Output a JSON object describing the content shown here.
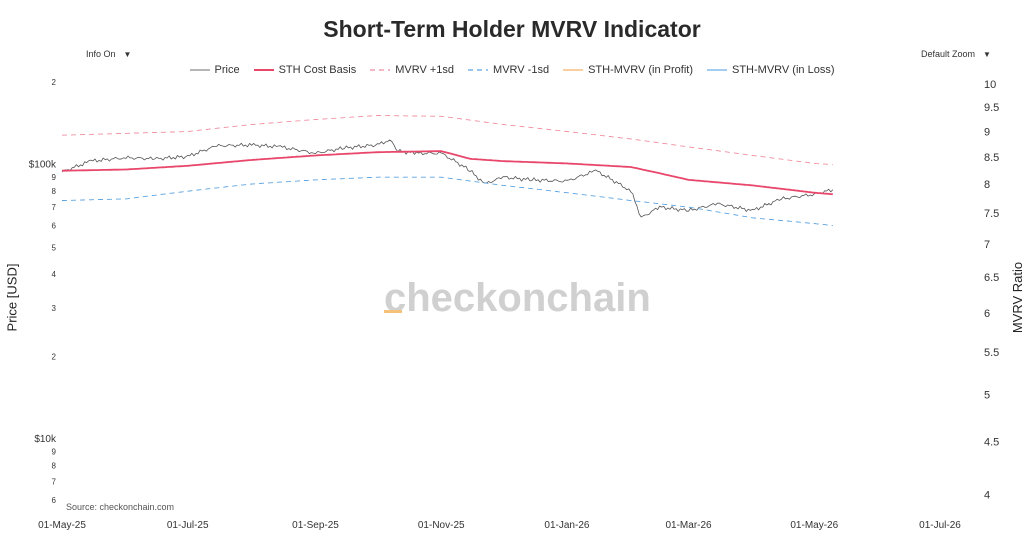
{
  "title": "Short-Term Holder MVRV Indicator",
  "controls": {
    "info_on": "Info On",
    "default_zoom": "Default Zoom",
    "caret": "▼"
  },
  "legend": [
    {
      "label": "Price",
      "color": "#8a8a8a",
      "dash": "none"
    },
    {
      "label": "STH Cost Basis",
      "color": "#e8466a",
      "dash": "none"
    },
    {
      "label": "MVRV +1sd",
      "color": "#f08ea0",
      "dash": "5,4"
    },
    {
      "label": "MVRV -1sd",
      "color": "#5ba3e0",
      "dash": "5,4"
    },
    {
      "label": "STH-MVRV (in Profit)",
      "color": "#f5b266",
      "dash": "none"
    },
    {
      "label": "STH-MVRV (in Loss)",
      "color": "#6aaee6",
      "dash": "none"
    }
  ],
  "source": "Source: checkonchain.com",
  "watermark": "checkonchain",
  "chart_data": {
    "type": "line",
    "x_axis": {
      "ticks": [
        "01-May-25",
        "01-Jul-25",
        "01-Sep-25",
        "01-Nov-25",
        "01-Jan-26",
        "01-Mar-26",
        "01-May-26",
        "01-Jul-26"
      ],
      "range": [
        "2025-05-01",
        "2026-07-01"
      ]
    },
    "y_left": {
      "label": "Price [USD]",
      "scale": "log",
      "range": [
        6000,
        200000
      ],
      "ticks": [
        {
          "v": 6000,
          "t": "6"
        },
        {
          "v": 7000,
          "t": "7"
        },
        {
          "v": 8000,
          "t": "8"
        },
        {
          "v": 9000,
          "t": "9"
        },
        {
          "v": 10000,
          "t": "$10k"
        },
        {
          "v": 20000,
          "t": "2"
        },
        {
          "v": 30000,
          "t": "3"
        },
        {
          "v": 40000,
          "t": "4"
        },
        {
          "v": 50000,
          "t": "5"
        },
        {
          "v": 60000,
          "t": "6"
        },
        {
          "v": 70000,
          "t": "7"
        },
        {
          "v": 80000,
          "t": "8"
        },
        {
          "v": 90000,
          "t": "9"
        },
        {
          "v": 100000,
          "t": "$100k"
        },
        {
          "v": 200000,
          "t": "2"
        }
      ]
    },
    "y_right": {
      "label": "MVRV Ratio",
      "scale": "log",
      "range": [
        3.95,
        10.05
      ],
      "ticks": [
        "4",
        "4.5",
        "5",
        "5.5",
        "6",
        "6.5",
        "7",
        "7.5",
        "8",
        "8.5",
        "9",
        "9.5",
        "10"
      ]
    },
    "series": [
      {
        "name": "Price",
        "axis": "left",
        "color": "#555555",
        "x": [
          "2025-05-01",
          "2025-05-15",
          "2025-06-01",
          "2025-06-15",
          "2025-07-01",
          "2025-07-15",
          "2025-08-01",
          "2025-08-15",
          "2025-09-01",
          "2025-09-15",
          "2025-10-01",
          "2025-10-07",
          "2025-10-11",
          "2025-10-20",
          "2025-11-01",
          "2025-11-15",
          "2025-11-22",
          "2025-12-01",
          "2025-12-15",
          "2026-01-01",
          "2026-01-15",
          "2026-02-01",
          "2026-02-06",
          "2026-02-15",
          "2026-03-01",
          "2026-03-15",
          "2026-04-01",
          "2026-04-15",
          "2026-05-01",
          "2026-05-10"
        ],
        "y": [
          94000,
          103000,
          106000,
          105000,
          107000,
          117000,
          118000,
          116000,
          110000,
          115000,
          118000,
          123000,
          112000,
          110000,
          110000,
          95000,
          85000,
          90000,
          88000,
          87000,
          95000,
          80000,
          64000,
          70000,
          68000,
          72000,
          68000,
          75000,
          78000,
          81000
        ]
      },
      {
        "name": "STH Cost Basis",
        "axis": "left",
        "color": "#e8466a",
        "x": [
          "2025-05-01",
          "2025-06-01",
          "2025-07-01",
          "2025-08-01",
          "2025-09-01",
          "2025-10-01",
          "2025-11-01",
          "2025-11-15",
          "2025-12-01",
          "2026-01-01",
          "2026-02-01",
          "2026-03-01",
          "2026-04-01",
          "2026-05-01",
          "2026-05-10"
        ],
        "y": [
          95000,
          96000,
          99000,
          104000,
          108000,
          111000,
          112000,
          105000,
          103000,
          101000,
          98000,
          88000,
          84000,
          79000,
          78000
        ]
      },
      {
        "name": "MVRV +1sd",
        "axis": "left",
        "color": "#f08ea0",
        "x": [
          "2025-05-01",
          "2025-06-01",
          "2025-07-01",
          "2025-08-01",
          "2025-09-01",
          "2025-10-01",
          "2025-11-01",
          "2025-12-01",
          "2026-01-01",
          "2026-02-01",
          "2026-03-01",
          "2026-04-01",
          "2026-05-01",
          "2026-05-10"
        ],
        "y": [
          128000,
          130000,
          132000,
          140000,
          146000,
          151000,
          150000,
          140000,
          132000,
          124000,
          116000,
          108000,
          101000,
          100000
        ]
      },
      {
        "name": "MVRV -1sd",
        "axis": "left",
        "color": "#5ba3e0",
        "x": [
          "2025-05-01",
          "2025-06-01",
          "2025-07-01",
          "2025-08-01",
          "2025-09-01",
          "2025-10-01",
          "2025-11-01",
          "2025-12-01",
          "2026-01-01",
          "2026-02-01",
          "2026-03-01",
          "2026-04-01",
          "2026-05-01",
          "2026-05-10"
        ],
        "y": [
          74000,
          75000,
          80000,
          85000,
          88000,
          90000,
          90000,
          84000,
          79000,
          74000,
          70000,
          64000,
          61000,
          60000
        ]
      }
    ]
  }
}
